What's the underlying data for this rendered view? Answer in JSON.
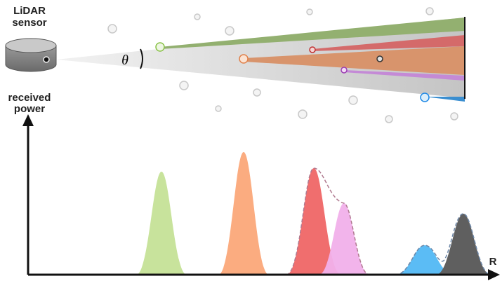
{
  "sensor_label": [
    "LiDAR",
    "sensor"
  ],
  "angle_label": "θ",
  "y_axis_label": [
    "received",
    "power"
  ],
  "x_axis_label": "R"
}
